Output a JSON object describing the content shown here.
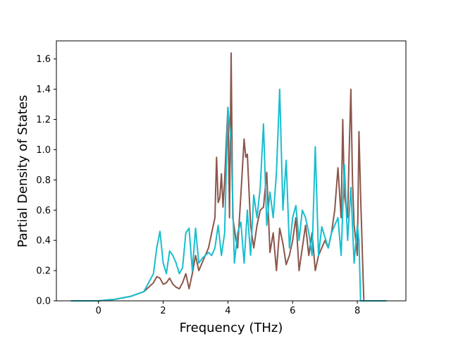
{
  "chart_data": {
    "type": "line",
    "title": "",
    "xlabel": "Frequency (THz)",
    "ylabel": "Partial Density of States",
    "xlim": [
      -1.3,
      9.5
    ],
    "ylim": [
      0.0,
      1.72
    ],
    "xticks": [
      0,
      2,
      4,
      6,
      8
    ],
    "xtick_labels": [
      "0",
      "2",
      "4",
      "6",
      "8"
    ],
    "yticks": [
      0.0,
      0.2,
      0.4,
      0.6,
      0.8,
      1.0,
      1.2,
      1.4,
      1.6
    ],
    "ytick_labels": [
      "0.0",
      "0.2",
      "0.4",
      "0.6",
      "0.8",
      "1.0",
      "1.2",
      "1.4",
      "1.6"
    ],
    "grid": false,
    "legend": "none",
    "series": [
      {
        "color": "#8c564b",
        "x": [
          -0.85,
          0.0,
          0.5,
          1.0,
          1.4,
          1.7,
          1.8,
          1.9,
          2.0,
          2.1,
          2.2,
          2.3,
          2.4,
          2.5,
          2.6,
          2.7,
          2.8,
          2.9,
          3.0,
          3.1,
          3.2,
          3.3,
          3.4,
          3.5,
          3.6,
          3.65,
          3.7,
          3.75,
          3.8,
          3.85,
          3.9,
          3.95,
          4.0,
          4.05,
          4.1,
          4.15,
          4.2,
          4.25,
          4.3,
          4.4,
          4.5,
          4.55,
          4.6,
          4.7,
          4.8,
          4.9,
          5.0,
          5.1,
          5.2,
          5.3,
          5.4,
          5.5,
          5.6,
          5.7,
          5.8,
          5.9,
          6.0,
          6.1,
          6.2,
          6.3,
          6.4,
          6.5,
          6.6,
          6.7,
          6.8,
          6.9,
          7.0,
          7.1,
          7.2,
          7.3,
          7.4,
          7.5,
          7.55,
          7.6,
          7.7,
          7.75,
          7.8,
          7.85,
          7.9,
          8.0,
          8.05,
          8.1,
          8.2,
          8.5,
          8.9
        ],
        "y": [
          0.0,
          0.0,
          0.01,
          0.03,
          0.06,
          0.12,
          0.16,
          0.15,
          0.11,
          0.12,
          0.15,
          0.11,
          0.09,
          0.08,
          0.12,
          0.18,
          0.08,
          0.18,
          0.3,
          0.2,
          0.25,
          0.3,
          0.35,
          0.45,
          0.55,
          0.95,
          0.65,
          0.68,
          0.84,
          0.62,
          0.8,
          1.05,
          1.28,
          0.55,
          1.64,
          0.55,
          0.48,
          0.4,
          0.35,
          0.7,
          1.07,
          0.95,
          0.97,
          0.5,
          0.35,
          0.5,
          0.6,
          0.62,
          0.85,
          0.32,
          0.45,
          0.2,
          0.48,
          0.38,
          0.24,
          0.3,
          0.4,
          0.55,
          0.2,
          0.35,
          0.5,
          0.3,
          0.45,
          0.2,
          0.3,
          0.35,
          0.4,
          0.35,
          0.45,
          0.6,
          0.88,
          0.55,
          1.2,
          0.7,
          0.55,
          1.0,
          1.4,
          0.8,
          0.5,
          0.3,
          1.12,
          0.7,
          0.0,
          0.0,
          0.0
        ]
      },
      {
        "color": "#17becf",
        "x": [
          -0.85,
          0.0,
          0.5,
          1.0,
          1.4,
          1.7,
          1.8,
          1.9,
          2.0,
          2.1,
          2.2,
          2.3,
          2.4,
          2.5,
          2.6,
          2.7,
          2.8,
          2.9,
          3.0,
          3.1,
          3.2,
          3.3,
          3.4,
          3.5,
          3.6,
          3.7,
          3.8,
          3.9,
          4.0,
          4.1,
          4.2,
          4.3,
          4.4,
          4.5,
          4.6,
          4.7,
          4.8,
          4.9,
          5.0,
          5.1,
          5.2,
          5.3,
          5.4,
          5.5,
          5.6,
          5.7,
          5.8,
          5.9,
          6.0,
          6.1,
          6.2,
          6.3,
          6.4,
          6.5,
          6.6,
          6.7,
          6.8,
          6.9,
          7.0,
          7.1,
          7.2,
          7.3,
          7.4,
          7.5,
          7.6,
          7.7,
          7.8,
          7.9,
          8.0,
          8.05,
          8.1,
          8.2,
          8.5,
          8.9
        ],
        "y": [
          0.0,
          0.0,
          0.01,
          0.03,
          0.06,
          0.18,
          0.35,
          0.46,
          0.25,
          0.18,
          0.33,
          0.3,
          0.25,
          0.18,
          0.22,
          0.45,
          0.48,
          0.2,
          0.48,
          0.25,
          0.28,
          0.3,
          0.32,
          0.3,
          0.35,
          0.5,
          0.3,
          0.45,
          1.28,
          1.05,
          0.25,
          0.45,
          0.52,
          0.25,
          0.6,
          0.3,
          0.7,
          0.55,
          0.75,
          1.17,
          0.5,
          0.72,
          0.55,
          0.85,
          1.4,
          0.6,
          0.93,
          0.35,
          0.55,
          0.63,
          0.4,
          0.6,
          0.55,
          0.45,
          0.3,
          1.02,
          0.3,
          0.49,
          0.42,
          0.35,
          0.45,
          0.5,
          0.55,
          0.3,
          0.9,
          0.4,
          0.75,
          0.25,
          0.5,
          0.4,
          0.0,
          0.0,
          0.0,
          0.0
        ]
      }
    ]
  }
}
